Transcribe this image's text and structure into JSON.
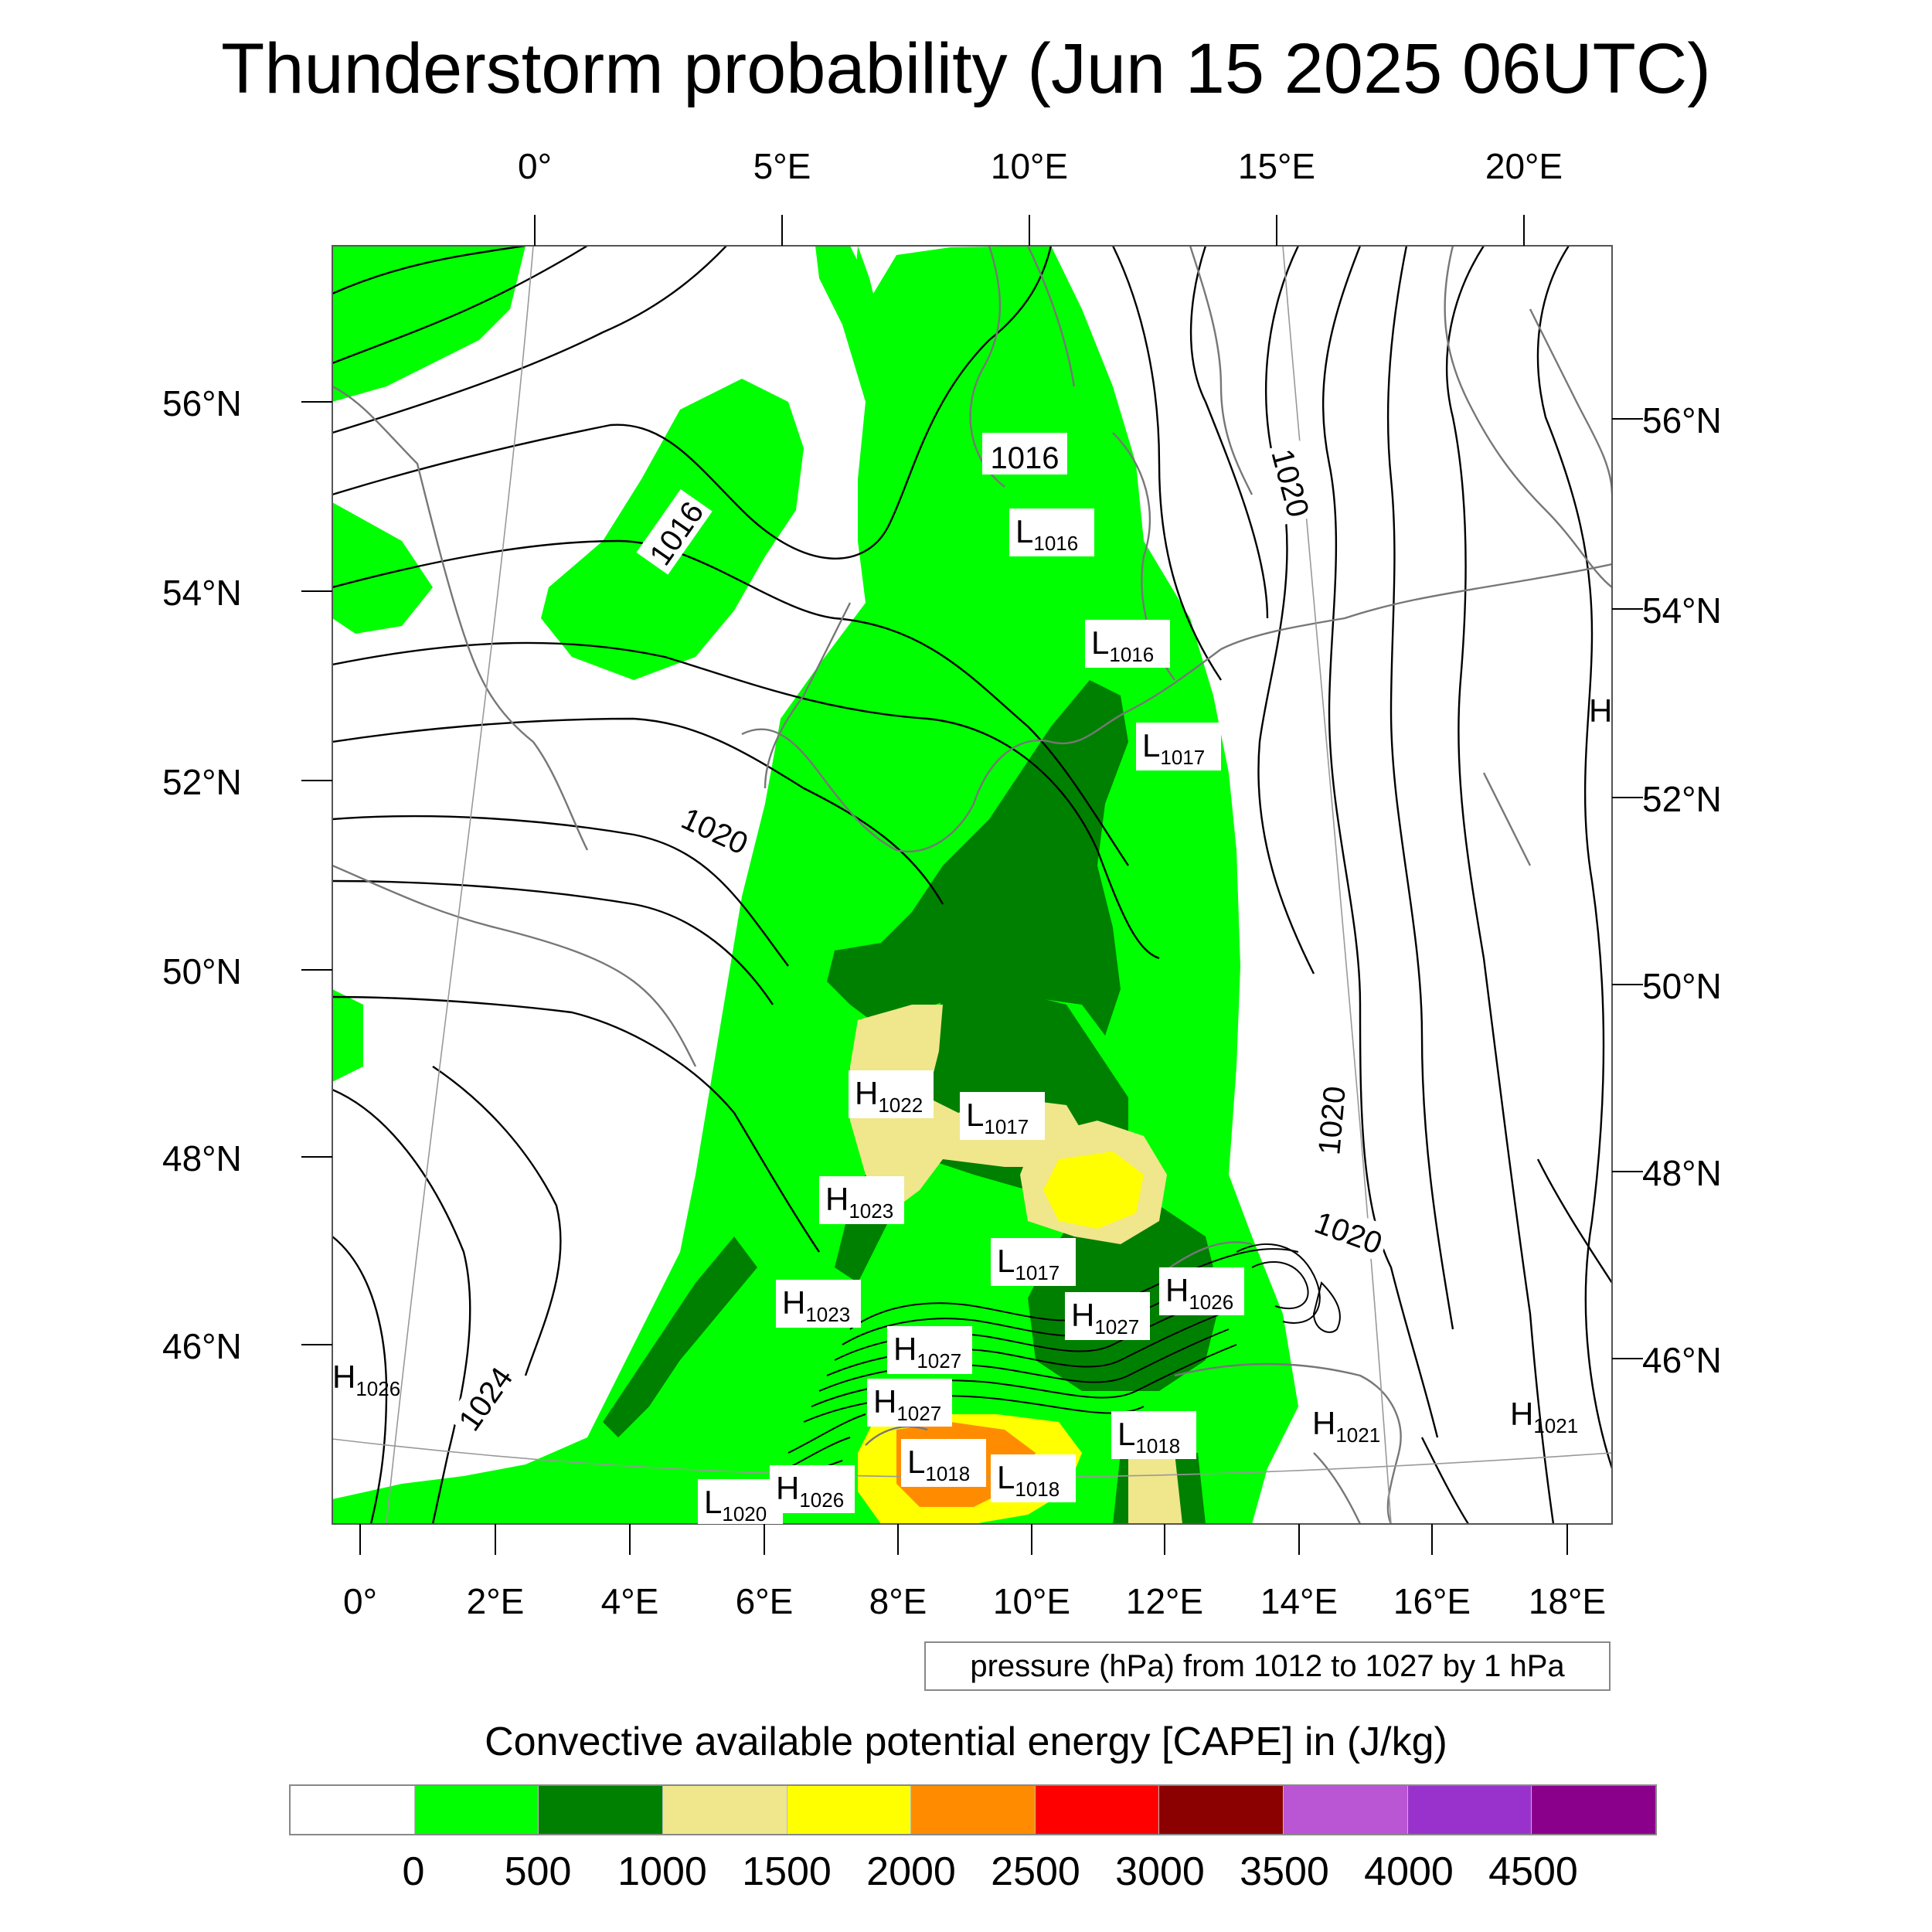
{
  "title": "Thunderstorm probability (Jun 15 2025 06UTC)",
  "axes": {
    "top_lon": [
      "0°",
      "5°E",
      "10°E",
      "15°E",
      "20°E"
    ],
    "bottom_lon": [
      "0°",
      "2°E",
      "4°E",
      "6°E",
      "8°E",
      "10°E",
      "12°E",
      "14°E",
      "16°E",
      "18°E"
    ],
    "left_lat": [
      "56°N",
      "54°N",
      "52°N",
      "50°N",
      "48°N",
      "46°N"
    ],
    "right_lat": [
      "56°N",
      "54°N",
      "52°N",
      "50°N",
      "48°N",
      "46°N"
    ]
  },
  "contour_note": "pressure (hPa) from 1012 to 1027 by 1 hPa",
  "contour_labels": [
    "1016",
    "1016",
    "1020",
    "1020",
    "1020",
    "1020",
    "1024"
  ],
  "pressure_centers": [
    {
      "type": "L",
      "value": "1016"
    },
    {
      "type": "L",
      "value": "1016"
    },
    {
      "type": "L",
      "value": "1017"
    },
    {
      "type": "H",
      "value": "1022"
    },
    {
      "type": "L",
      "value": "1017"
    },
    {
      "type": "H",
      "value": "1023"
    },
    {
      "type": "L",
      "value": "1017"
    },
    {
      "type": "H",
      "value": "1023"
    },
    {
      "type": "H",
      "value": "1026"
    },
    {
      "type": "H",
      "value": "1027"
    },
    {
      "type": "H",
      "value": "1027"
    },
    {
      "type": "H",
      "value": "1027"
    },
    {
      "type": "L",
      "value": "1018"
    },
    {
      "type": "L",
      "value": "1018"
    },
    {
      "type": "L",
      "value": "1018"
    },
    {
      "type": "H",
      "value": "1021"
    },
    {
      "type": "H",
      "value": "1021"
    },
    {
      "type": "H",
      "value": "1026"
    },
    {
      "type": "L",
      "value": "1020"
    },
    {
      "type": "H",
      "value": "1026"
    },
    {
      "type": "H",
      "value": ""
    }
  ],
  "colorbar": {
    "title": "Convective available potential energy [CAPE] in (J/kg)",
    "labels": [
      "0",
      "500",
      "1000",
      "1500",
      "2000",
      "2500",
      "3000",
      "3500",
      "4000",
      "4500"
    ],
    "colors": [
      "#ffffff",
      "#00ff00",
      "#008000",
      "#f0e68c",
      "#ffff00",
      "#ff8c00",
      "#ff0000",
      "#8b0000",
      "#ba55d3",
      "#9932cc",
      "#8b008b"
    ]
  }
}
